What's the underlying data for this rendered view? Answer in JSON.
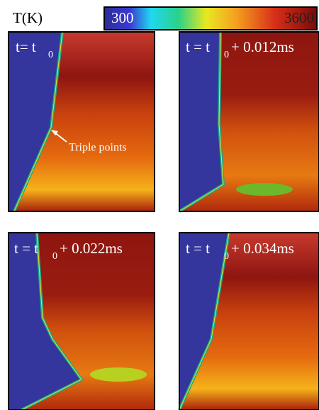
{
  "colorbar": {
    "label": "T(K)",
    "min": "300",
    "max": "3600"
  },
  "panels": [
    {
      "label": "t= t",
      "subscript": "0",
      "suffix": ""
    },
    {
      "label": "t = t",
      "subscript": "0",
      "suffix": "+ 0.012ms"
    },
    {
      "label": "t = t",
      "subscript": "0",
      "suffix": "+ 0.022ms"
    },
    {
      "label": "t = t",
      "subscript": "0",
      "suffix": "+ 0.034ms"
    }
  ],
  "annotation": "Triple points"
}
